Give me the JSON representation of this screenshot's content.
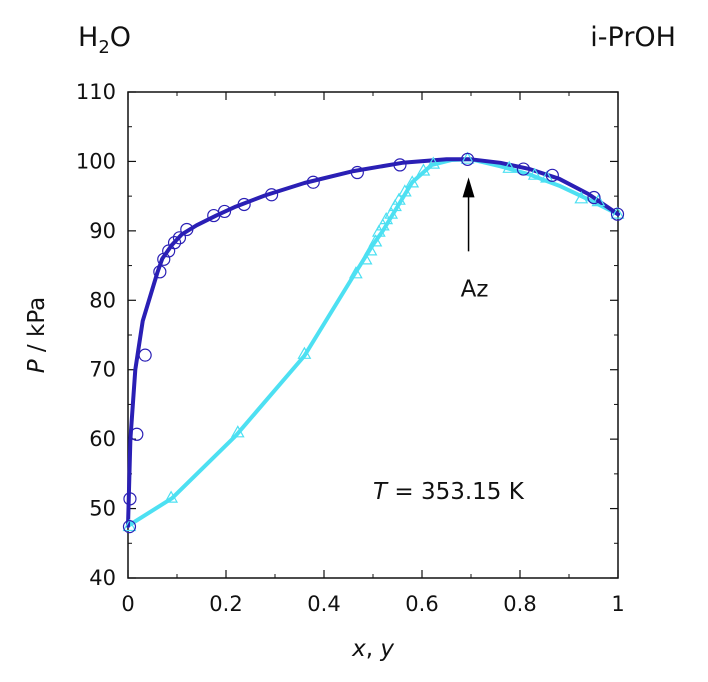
{
  "chart_data": {
    "type": "line",
    "left_component": {
      "base": "H",
      "sub": "2",
      "tail": "O"
    },
    "right_component": "i-PrOH",
    "xlabel": {
      "var1": "x",
      "sep": ", ",
      "var2": "y"
    },
    "ylabel": {
      "var": "P",
      "unit": " / kPa"
    },
    "xlim": [
      0,
      1
    ],
    "ylim": [
      40,
      110
    ],
    "xticks": [
      0,
      0.2,
      0.4,
      0.6,
      0.8,
      1
    ],
    "xtick_labels": [
      "0",
      "0.2",
      "0.4",
      "0.6",
      "0.8",
      "1"
    ],
    "yticks": [
      40,
      50,
      60,
      70,
      80,
      90,
      100,
      110
    ],
    "ytick_labels": [
      "40",
      "50",
      "60",
      "70",
      "80",
      "90",
      "100",
      "110"
    ],
    "grid": false,
    "annotations": {
      "azeotrope": {
        "text": "Az",
        "x": 0.695,
        "y": 100.3
      },
      "temperature": {
        "var": "T",
        "text": " = 353.15 K"
      }
    },
    "series": [
      {
        "role": "bubble-line",
        "color": "#2a1fb5",
        "x": [
          0,
          0.005,
          0.015,
          0.03,
          0.06,
          0.07,
          0.09,
          0.11,
          0.14,
          0.18,
          0.22,
          0.28,
          0.36,
          0.46,
          0.56,
          0.65,
          0.7,
          0.76,
          0.82,
          0.88,
          0.94,
          1.0
        ],
        "y": [
          47.5,
          60,
          70,
          77,
          84,
          86,
          88,
          89.5,
          90.8,
          92.2,
          93.5,
          95.1,
          96.9,
          98.6,
          99.8,
          100.3,
          100.3,
          99.8,
          98.9,
          97.5,
          95.3,
          92.4
        ]
      },
      {
        "role": "dew-line",
        "color": "#4de0f2",
        "x": [
          0,
          0.09,
          0.22,
          0.36,
          0.46,
          0.5,
          0.52,
          0.55,
          0.58,
          0.62,
          0.66,
          0.7,
          0.76,
          0.82,
          0.88,
          0.94,
          1.0
        ],
        "y": [
          47.5,
          51.5,
          60.5,
          72,
          83.5,
          88,
          90,
          93.5,
          97,
          99.5,
          100.2,
          100.3,
          99.3,
          98.1,
          96.5,
          94.5,
          92.4
        ]
      },
      {
        "role": "bubble-points",
        "marker": "circle",
        "color": "#2a1fb5",
        "x": [
          0.003,
          0.004,
          0.018,
          0.035,
          0.065,
          0.073,
          0.083,
          0.095,
          0.105,
          0.12,
          0.175,
          0.197,
          0.237,
          0.293,
          0.378,
          0.468,
          0.555,
          0.693,
          0.807,
          0.866,
          0.951,
          0.999
        ],
        "y": [
          47.4,
          51.4,
          60.7,
          72.1,
          84.1,
          85.9,
          87.1,
          88.3,
          89.0,
          90.2,
          92.2,
          92.8,
          93.8,
          95.2,
          97.0,
          98.4,
          99.5,
          100.3,
          98.9,
          98.0,
          94.8,
          92.4
        ]
      },
      {
        "role": "dew-points",
        "marker": "triangle",
        "color": "#4de0f2",
        "x": [
          0.003,
          0.088,
          0.224,
          0.36,
          0.465,
          0.485,
          0.495,
          0.505,
          0.512,
          0.52,
          0.527,
          0.537,
          0.545,
          0.553,
          0.565,
          0.58,
          0.603,
          0.623,
          0.693,
          0.778,
          0.83,
          0.855,
          0.925,
          0.96,
          0.999
        ],
        "y": [
          47.4,
          51.5,
          60.9,
          72.2,
          83.8,
          85.8,
          87.1,
          88.4,
          89.8,
          90.7,
          91.6,
          92.4,
          93.5,
          94.4,
          95.6,
          96.9,
          98.6,
          99.6,
          100.3,
          99.0,
          98.0,
          97.6,
          94.6,
          94.2,
          92.4
        ]
      }
    ]
  }
}
